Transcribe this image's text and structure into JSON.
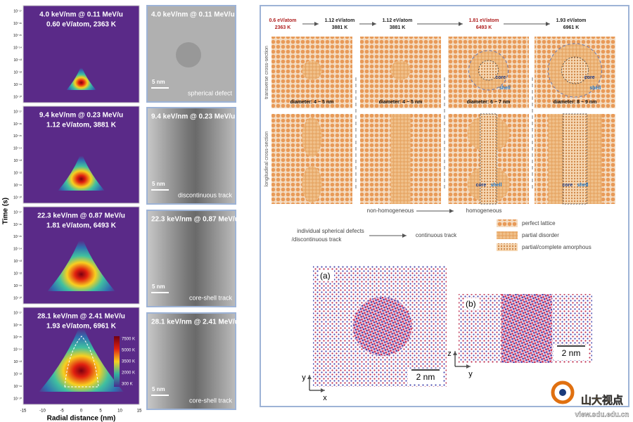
{
  "heatmaps": {
    "panels": [
      {
        "line1": "4.0 keV/nm @ 0.11 MeV/u",
        "line2": "0.60 eV/atom, 2363 K"
      },
      {
        "line1": "9.4 keV/nm @ 0.23 MeV/u",
        "line2": "1.12 eV/atom, 3881 K"
      },
      {
        "line1": "22.3 keV/nm @ 0.87 MeV/u",
        "line2": "1.81 eV/atom, 6493 K"
      },
      {
        "line1": "28.1 keV/nm @ 2.41 MeV/u",
        "line2": "1.93 eV/atom, 6961 K"
      }
    ],
    "y_label": "Time (s)",
    "y_ticks": [
      "10⁻¹⁷",
      "10⁻¹⁶",
      "10⁻¹⁵",
      "10⁻¹⁴",
      "10⁻¹³",
      "10⁻¹²",
      "10⁻¹¹",
      "10⁻¹⁰"
    ],
    "x_label": "Radial distance (nm)",
    "x_ticks": [
      "-15",
      "-10",
      "-5",
      "0",
      "5",
      "10",
      "15"
    ],
    "colorbar": [
      "7500 K",
      "5000 K",
      "3500 K",
      "2000 K",
      "300 K"
    ]
  },
  "tem": {
    "panels": [
      {
        "title": "4.0 keV/nm @ 0.11 MeV/u",
        "scale": "5 nm",
        "caption": "spherical defect"
      },
      {
        "title": "9.4 keV/nm @ 0.23 MeV/u",
        "scale": "5 nm",
        "caption": "discontinuous track"
      },
      {
        "title": "22.3 keV/nm @ 0.87 MeV/u",
        "scale": "5 nm",
        "caption": "core-shell track"
      },
      {
        "title": "28.1 keV/nm @ 2.41 MeV/u",
        "scale": "5 nm",
        "caption": "core-shell track"
      }
    ]
  },
  "schematic": {
    "headers": [
      {
        "energy": "0.6 eV/atom",
        "temp": "2363 K"
      },
      {
        "energy": "1.12 eV/atom",
        "temp": "3881 K"
      },
      {
        "energy": "1.12 eV/atom",
        "temp": "3881 K"
      },
      {
        "energy": "1.81 eV/atom",
        "temp": "6493 K"
      },
      {
        "energy": "1.93 eV/atom",
        "temp": "6961 K"
      }
    ],
    "row_labels": [
      "transverse cross-section",
      "longitudinal cross-section"
    ],
    "diameters": [
      "diameter: 4 ~ 5 nm",
      "diameter: 4 ~ 5 nm",
      "diameter: 6 ~ 7 nm",
      "diameter: 8 ~ 9 nm"
    ],
    "core": "core",
    "shell": "shell",
    "non_homogeneous": "non-homogeneous",
    "homogeneous": "homogeneous",
    "left_note": [
      "individual spherical defects",
      "/discontinuous track"
    ],
    "right_note": "continuous track",
    "legend": [
      "perfect lattice",
      "partial disorder",
      "partial/complete amorphous"
    ]
  },
  "atoms": {
    "a": {
      "label": "(a)",
      "scale": "2 nm",
      "axes": [
        "y",
        "x"
      ]
    },
    "b": {
      "label": "(b)",
      "scale": "2 nm",
      "axes": [
        "z",
        "y"
      ]
    }
  },
  "watermark": {
    "name": "山大视点",
    "url": "view.sdu.edu.cn"
  }
}
